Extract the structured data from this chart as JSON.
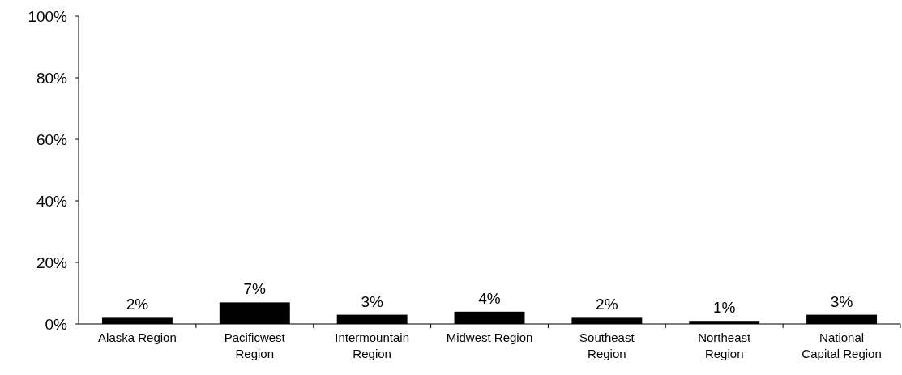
{
  "chart_data": {
    "type": "bar",
    "categories": [
      "Alaska Region",
      "Pacificwest Region",
      "Intermountain Region",
      "Midwest Region",
      "Southeast Region",
      "Northeast Region",
      "National Capital Region"
    ],
    "values": [
      2,
      7,
      3,
      4,
      2,
      1,
      3
    ],
    "color": "#000000",
    "value_labels": [
      "2%",
      "7%",
      "3%",
      "4%",
      "2%",
      "1%",
      "3%"
    ],
    "ylim": [
      0,
      100
    ],
    "yticks": [
      {
        "value": 0,
        "label": "0%"
      },
      {
        "value": 20,
        "label": "20%"
      },
      {
        "value": 40,
        "label": "40%"
      },
      {
        "value": 60,
        "label": "60%"
      },
      {
        "value": 80,
        "label": "80%"
      },
      {
        "value": 100,
        "label": "100%"
      }
    ],
    "grid": false
  }
}
